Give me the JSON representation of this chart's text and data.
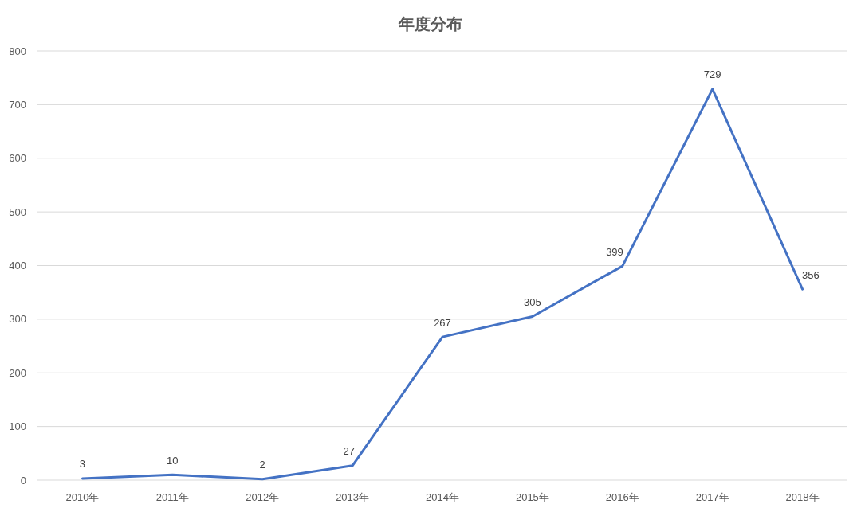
{
  "chart_data": {
    "type": "line",
    "title": "年度分布",
    "categories": [
      "2010年",
      "2011年",
      "2012年",
      "2013年",
      "2014年",
      "2015年",
      "2016年",
      "2017年",
      "2018年"
    ],
    "series": [
      {
        "color": "#4472c4",
        "values": [
          3,
          10,
          2,
          27,
          267,
          305,
          399,
          729,
          356
        ]
      }
    ],
    "ylim": [
      0,
      800
    ],
    "yticks": [
      0,
      100,
      200,
      300,
      400,
      500,
      600,
      700,
      800
    ],
    "grid": "y",
    "data_labels": true,
    "line_style": "solid"
  }
}
